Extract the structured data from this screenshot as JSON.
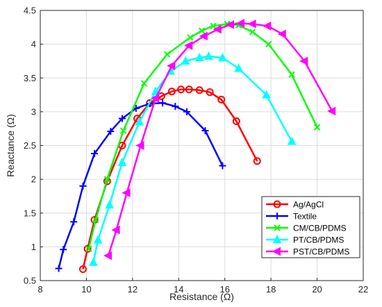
{
  "chart_data": {
    "type": "line",
    "xlabel": "Resistance (Ω)",
    "ylabel": "Reactance (Ω)",
    "xlim": [
      8,
      22
    ],
    "ylim": [
      0.5,
      4.5
    ],
    "xticks": [
      "8",
      "10",
      "12",
      "14",
      "16",
      "18",
      "20",
      "22"
    ],
    "yticks": [
      "0.5",
      "1",
      "1.5",
      "2",
      "2.5",
      "3",
      "3.5",
      "4",
      "4.5"
    ],
    "grid": true,
    "legend_position": "bottom-right",
    "series": [
      {
        "name": "Ag/AgCl",
        "color": "#ff0000",
        "marker": "circle",
        "x": [
          9.85,
          10.05,
          10.35,
          10.9,
          11.55,
          12.2,
          12.75,
          13.25,
          13.7,
          14.1,
          14.45,
          14.9,
          15.35,
          15.85,
          16.5,
          17.4
        ],
        "y": [
          0.67,
          0.97,
          1.4,
          1.97,
          2.5,
          2.9,
          3.13,
          3.23,
          3.3,
          3.33,
          3.33,
          3.32,
          3.29,
          3.18,
          2.86,
          2.27
        ]
      },
      {
        "name": "Textile",
        "color": "#0000ff",
        "marker": "plus",
        "x": [
          8.8,
          9.0,
          9.45,
          9.85,
          10.35,
          11.05,
          11.55,
          12.15,
          12.75,
          13.3,
          13.85,
          14.35,
          15.15,
          15.9
        ],
        "y": [
          0.68,
          0.96,
          1.37,
          1.9,
          2.38,
          2.71,
          2.9,
          3.05,
          3.12,
          3.13,
          3.08,
          3.0,
          2.72,
          2.2
        ]
      },
      {
        "name": "CM/CB/PDMS",
        "color": "#00ff00",
        "marker": "x",
        "x": [
          10.1,
          10.4,
          10.9,
          11.6,
          12.5,
          13.5,
          14.5,
          15.0,
          15.5,
          16.1,
          16.6,
          17.2,
          17.9,
          18.9,
          20.0
        ],
        "y": [
          0.97,
          1.4,
          2.0,
          2.72,
          3.42,
          3.85,
          4.1,
          4.2,
          4.27,
          4.3,
          4.28,
          4.18,
          4.0,
          3.55,
          2.77
        ]
      },
      {
        "name": "PT/CB/PDMS",
        "color": "#00ffff",
        "marker": "triangle-up",
        "x": [
          10.3,
          10.5,
          11.0,
          11.55,
          12.3,
          13.0,
          13.65,
          14.3,
          14.9,
          15.3,
          15.9,
          16.6,
          17.8,
          18.9
        ],
        "y": [
          0.77,
          1.1,
          1.62,
          2.25,
          2.85,
          3.3,
          3.6,
          3.75,
          3.8,
          3.82,
          3.8,
          3.64,
          3.25,
          2.56
        ]
      },
      {
        "name": "PST/CB/PDMS",
        "color": "#ff00ff",
        "marker": "triangle-left",
        "x": [
          10.95,
          11.3,
          11.75,
          12.35,
          13.0,
          13.7,
          14.45,
          15.1,
          15.7,
          16.25,
          16.7,
          17.2,
          17.85,
          18.5,
          19.45,
          20.65
        ],
        "y": [
          0.87,
          1.25,
          1.8,
          2.5,
          3.2,
          3.68,
          3.98,
          4.12,
          4.22,
          4.29,
          4.31,
          4.3,
          4.27,
          4.15,
          3.75,
          3.01
        ]
      }
    ]
  }
}
